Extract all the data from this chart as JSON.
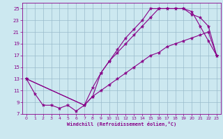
{
  "xlabel": "Windchill (Refroidissement éolien,°C)",
  "background_color": "#cce8f0",
  "line_color": "#880088",
  "grid_color": "#99bbcc",
  "xlim": [
    -0.5,
    23.5
  ],
  "ylim": [
    7,
    26
  ],
  "xticks": [
    0,
    1,
    2,
    3,
    4,
    5,
    6,
    7,
    8,
    9,
    10,
    11,
    12,
    13,
    14,
    15,
    16,
    17,
    18,
    19,
    20,
    21,
    22,
    23
  ],
  "yticks": [
    7,
    9,
    11,
    13,
    15,
    17,
    19,
    21,
    23,
    25
  ],
  "curve1_x": [
    0,
    1,
    2,
    3,
    4,
    5,
    6,
    7,
    8,
    9,
    10,
    11,
    12,
    13,
    14,
    15,
    16,
    17,
    18,
    19,
    20,
    21,
    22,
    23
  ],
  "curve1_y": [
    13,
    10.5,
    8.5,
    8.5,
    8,
    8.5,
    7.5,
    8.5,
    10,
    14,
    16,
    18,
    20,
    21.5,
    23,
    25,
    25,
    25,
    25,
    25,
    24.5,
    22,
    19.5,
    17
  ],
  "curve2_x": [
    0,
    7,
    8,
    9,
    10,
    11,
    12,
    13,
    14,
    15,
    16,
    17,
    18,
    19,
    20,
    21,
    22,
    23
  ],
  "curve2_y": [
    13,
    8.5,
    11.5,
    14,
    16,
    17.5,
    19,
    20.5,
    22,
    23.5,
    25,
    25,
    25,
    25,
    24,
    23.5,
    22,
    17
  ],
  "curve3_x": [
    0,
    7,
    8,
    9,
    10,
    11,
    12,
    13,
    14,
    15,
    16,
    17,
    18,
    19,
    20,
    21,
    22,
    23
  ],
  "curve3_y": [
    13,
    8.5,
    10,
    11,
    12,
    13,
    14,
    15,
    16,
    17,
    17.5,
    18.5,
    19,
    19.5,
    20,
    20.5,
    21,
    17
  ]
}
